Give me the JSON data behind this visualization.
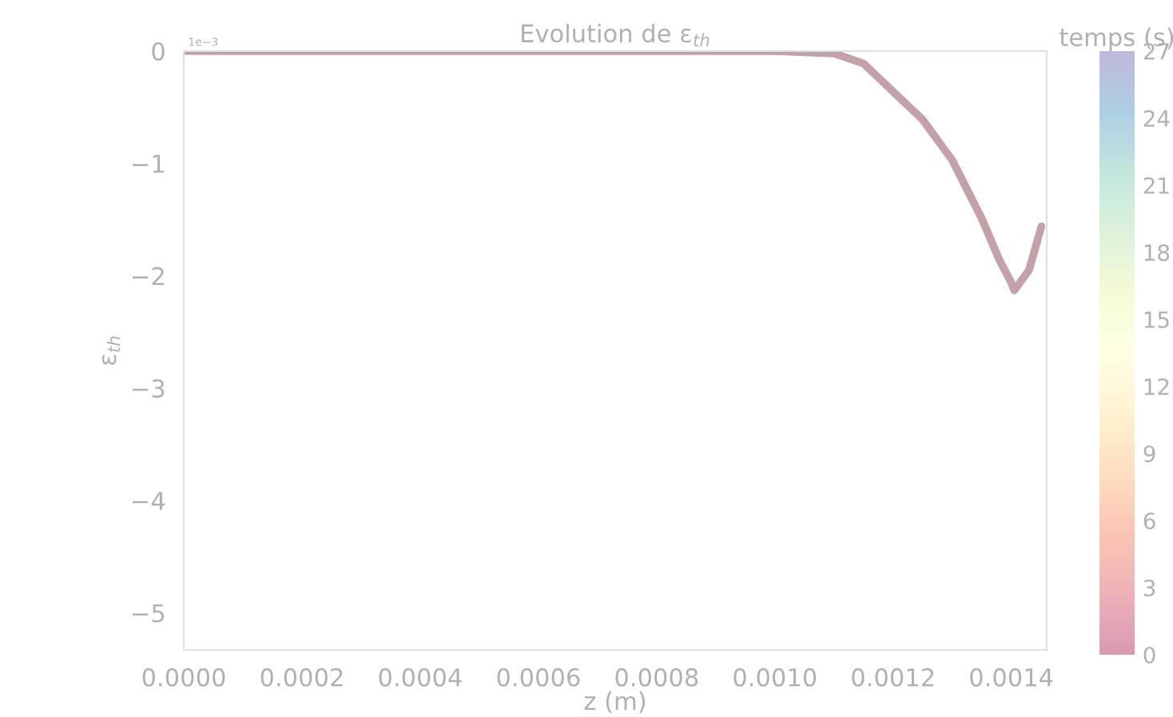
{
  "chart_data": {
    "type": "line",
    "title": "Evolution de ε$_{th}$",
    "xlabel": "z (m)",
    "ylabel": "ε$_{th}$",
    "clabel": "temps (s)",
    "annotations": [
      "1e−3"
    ],
    "x": [
      0,
      0.0005,
      0.001,
      0.0011,
      0.00115,
      0.0012,
      0.00125,
      0.0013,
      0.00135,
      0.00138,
      0.0014,
      0.001405,
      0.00143,
      0.001451
    ],
    "series": [
      {
        "color": "#c4a0a8",
        "values": [
          0,
          0,
          0,
          -0.02,
          -0.11,
          -0.36,
          -0.61,
          -0.97,
          -1.49,
          -1.86,
          -2.06,
          -2.13,
          -1.95,
          -1.56
        ]
      }
    ],
    "xlim": [
      0,
      0.00146
    ],
    "xticks": [
      {
        "value": 0,
        "label": "0.0000"
      },
      {
        "value": 0.0002,
        "label": "0.0002"
      },
      {
        "value": 0.0004,
        "label": "0.0004"
      },
      {
        "value": 0.0006,
        "label": "0.0006"
      },
      {
        "value": 0.0008,
        "label": "0.0008"
      },
      {
        "value": 0.001,
        "label": "0.0010"
      },
      {
        "value": 0.0012,
        "label": "0.0012"
      },
      {
        "value": 0.0014,
        "label": "0.0014"
      }
    ],
    "ylim": [
      -5.33,
      0
    ],
    "yticks": [
      0,
      {
        "value": -1,
        "label": "−1"
      },
      {
        "value": -2,
        "label": "−2"
      },
      {
        "value": -3,
        "label": "−3"
      },
      {
        "value": -4,
        "label": "−4"
      },
      {
        "value": -5,
        "label": "−5"
      }
    ],
    "clim": [
      0,
      27
    ],
    "cticks": [
      0,
      3,
      6,
      9,
      12,
      15,
      18,
      21,
      24,
      27
    ],
    "grid": false,
    "legend": false
  }
}
